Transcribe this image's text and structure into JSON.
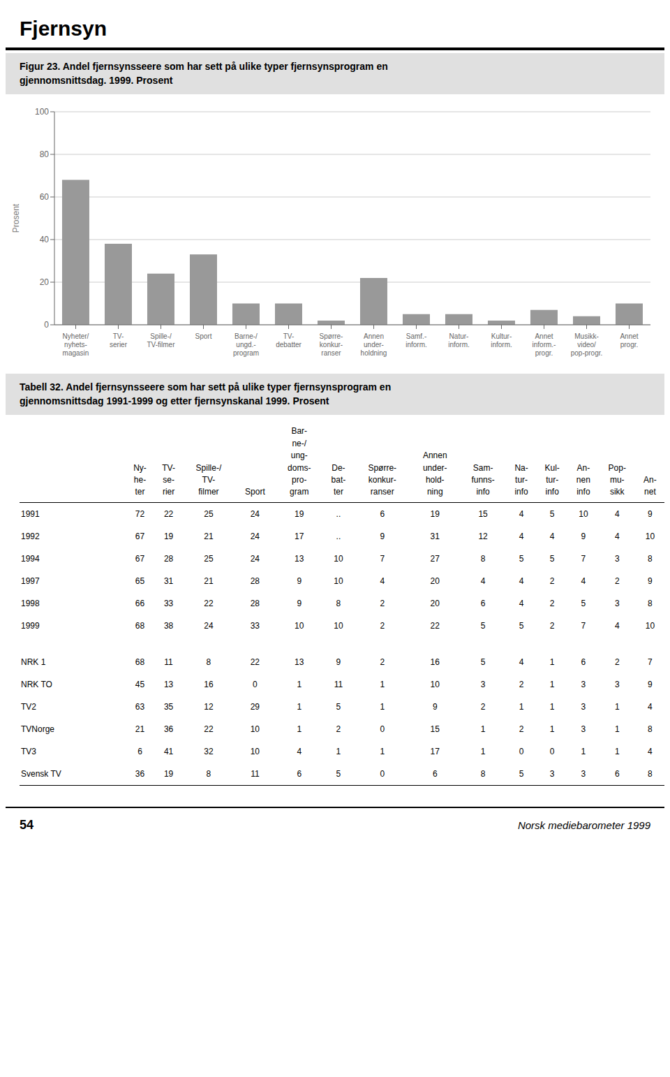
{
  "chart_data": [
    {
      "type": "bar",
      "title": "Fjernsyn",
      "subtitle": "Figur 23.  Andel fjernsynsseere som har sett på ulike typer fjernsynsprogram en\ngjennomsnittsdag.  1999.  Prosent",
      "ylabel": "Prosent",
      "categories": [
        "Nyheter/\nnyhets-\nmagasin",
        "TV-\nserier",
        "Spille-/\nTV-filmer",
        "Sport",
        "Barne-/\nungd.-\nprogram",
        "TV-\ndebatter",
        "Spørre-\nkonkur-\nranser",
        "Annen\nunder-\nholdning",
        "Samf.-\ninform.",
        "Natur-\ninform.",
        "Kultur-\ninform.",
        "Annet\ninform.-\nprogr.",
        "Musikk-\nvideo/\npop-progr.",
        "Annet\nprogr."
      ],
      "values": [
        68,
        38,
        24,
        33,
        10,
        10,
        2,
        22,
        5,
        5,
        2,
        7,
        4,
        10
      ],
      "color": "#999999",
      "ylim": [
        0,
        100
      ],
      "yticks": [
        0,
        20,
        40,
        60,
        80,
        100
      ],
      "grid": true
    },
    {
      "type": "table",
      "title": "Tabell 32.  Andel fjernsynsseere som har sett på ulike typer fjernsynsprogram en\ngjennomsnittsdag 1991-1999 og etter fjernsynskanal 1999. Prosent",
      "columns": [
        "Ny-\nhe-\nter",
        "TV-\nse-\nrier",
        "Spille-/\nTV-\nfilmer",
        "Sport",
        "Bar-\nne-/\nung-\ndoms-\npro-\ngram",
        "De-\nbat-\nter",
        "Spørre-\nkonkur-\nranser",
        "Annen\nunder-\nhold-\nning",
        "Sam-\nfunns-\ninfo",
        "Na-\ntur-\ninfo",
        "Kul-\ntur-\ninfo",
        "An-\nnen\ninfo",
        "Pop-\nmu-\nsikk",
        "An-\nnet"
      ],
      "row_groups": [
        [
          [
            "1991",
            "72",
            "22",
            "25",
            "24",
            "19",
            "..",
            "6",
            "19",
            "15",
            "4",
            "5",
            "10",
            "4",
            "9"
          ],
          [
            "1992",
            "67",
            "19",
            "21",
            "24",
            "17",
            "..",
            "9",
            "31",
            "12",
            "4",
            "4",
            "9",
            "4",
            "10"
          ],
          [
            "1994",
            "67",
            "28",
            "25",
            "24",
            "13",
            "10",
            "7",
            "27",
            "8",
            "5",
            "5",
            "7",
            "3",
            "8"
          ],
          [
            "1997",
            "65",
            "31",
            "21",
            "28",
            "9",
            "10",
            "4",
            "20",
            "4",
            "4",
            "2",
            "4",
            "2",
            "9"
          ],
          [
            "1998",
            "66",
            "33",
            "22",
            "28",
            "9",
            "8",
            "2",
            "20",
            "6",
            "4",
            "2",
            "5",
            "3",
            "8"
          ],
          [
            "1999",
            "68",
            "38",
            "24",
            "33",
            "10",
            "10",
            "2",
            "22",
            "5",
            "5",
            "2",
            "7",
            "4",
            "10"
          ]
        ],
        [
          [
            "NRK 1",
            "68",
            "11",
            "8",
            "22",
            "13",
            "9",
            "2",
            "16",
            "5",
            "4",
            "1",
            "6",
            "2",
            "7"
          ],
          [
            "NRK TO",
            "45",
            "13",
            "16",
            "0",
            "1",
            "11",
            "1",
            "10",
            "3",
            "2",
            "1",
            "3",
            "3",
            "9"
          ],
          [
            "TV2",
            "63",
            "35",
            "12",
            "29",
            "1",
            "5",
            "1",
            "9",
            "2",
            "1",
            "1",
            "3",
            "1",
            "4"
          ],
          [
            "TVNorge",
            "21",
            "36",
            "22",
            "10",
            "1",
            "2",
            "0",
            "15",
            "1",
            "2",
            "1",
            "3",
            "1",
            "8"
          ],
          [
            "TV3",
            "6",
            "41",
            "32",
            "10",
            "4",
            "1",
            "1",
            "17",
            "1",
            "0",
            "0",
            "1",
            "1",
            "4"
          ],
          [
            "Svensk TV",
            "36",
            "19",
            "8",
            "11",
            "6",
            "5",
            "0",
            "6",
            "8",
            "5",
            "3",
            "3",
            "6",
            "8"
          ]
        ]
      ],
      "annotations": [
        "54",
        "Norsk mediebarometer 1999"
      ]
    }
  ]
}
